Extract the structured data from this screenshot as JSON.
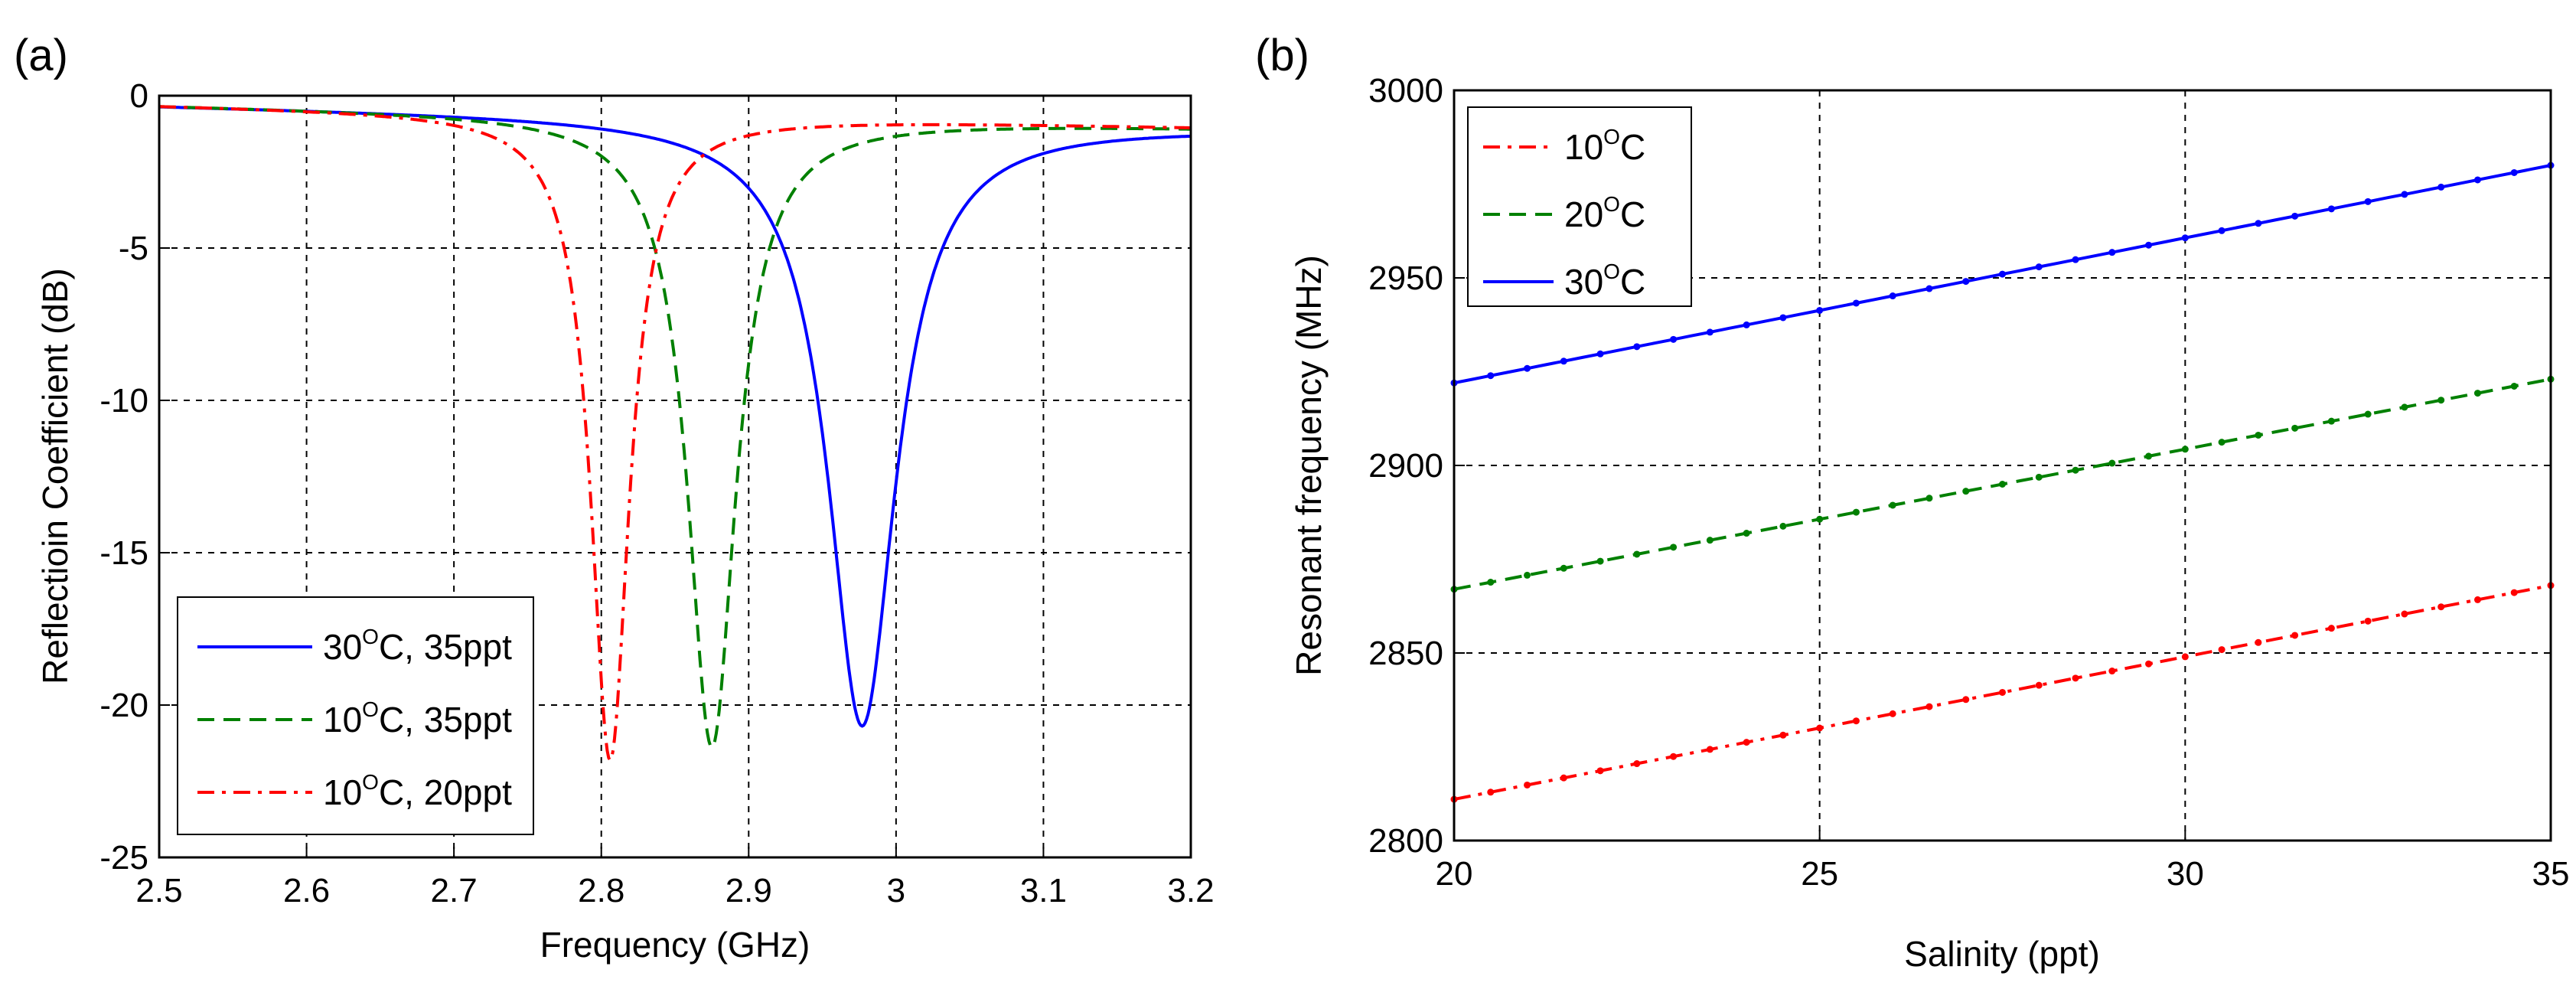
{
  "chart_data": [
    {
      "panel_label": "(a)",
      "type": "line",
      "xlabel": "Frequency (GHz)",
      "ylabel": "Reflectioin Coefficient (dB)",
      "xlim": [
        2.5,
        3.2
      ],
      "ylim": [
        -25,
        0
      ],
      "grid": true,
      "legend_placement": "bottom-left",
      "x_ticks": [
        "2.5",
        "2.6",
        "2.7",
        "2.8",
        "2.9",
        "3",
        "3.1",
        "3.2"
      ],
      "y_ticks": [
        "0",
        "-5",
        "-10",
        "-15",
        "-20",
        "-25"
      ],
      "series": [
        {
          "name": "30°C, 35ppt",
          "legend_base": "30",
          "legend_sup": "O",
          "legend_rest": "C, 35ppt",
          "color": "#0000ff",
          "style": "solid",
          "f0": 2.977,
          "min_db": -20.2,
          "half_width": 0.028,
          "base_db": -0.3
        },
        {
          "name": "10°C, 35ppt",
          "legend_base": "10",
          "legend_sup": "O",
          "legend_rest": "C, 35ppt",
          "color": "#008000",
          "style": "dashed",
          "f0": 2.875,
          "min_db": -21.0,
          "half_width": 0.02,
          "base_db": -0.3
        },
        {
          "name": "10°C, 20ppt",
          "legend_base": "10",
          "legend_sup": "O",
          "legend_rest": "C, 20ppt",
          "color": "#ff0000",
          "style": "dashdot",
          "f0": 2.806,
          "min_db": -21.5,
          "half_width": 0.016,
          "base_db": -0.3
        }
      ]
    },
    {
      "panel_label": "(b)",
      "type": "line",
      "xlabel": "Salinity (ppt)",
      "ylabel": "Resonant frequency (MHz)",
      "xlim": [
        20,
        35
      ],
      "ylim": [
        2800,
        3000
      ],
      "grid": true,
      "legend_placement": "top-left",
      "x_ticks": [
        "20",
        "25",
        "30",
        "35"
      ],
      "y_ticks": [
        "3000",
        "2950",
        "2900",
        "2850",
        "2800"
      ],
      "series": [
        {
          "name": "10°C",
          "legend_base": "10",
          "legend_sup": "O",
          "legend_rest": "C",
          "color": "#ff0000",
          "style": "dashdot",
          "y_start": 2811,
          "y_end": 2868
        },
        {
          "name": "20°C",
          "legend_base": "20",
          "legend_sup": "O",
          "legend_rest": "C",
          "color": "#008000",
          "style": "dashed",
          "y_start": 2867,
          "y_end": 2923
        },
        {
          "name": "30°C",
          "legend_base": "30",
          "legend_sup": "O",
          "legend_rest": "C",
          "color": "#0000ff",
          "style": "solid",
          "y_start": 2922,
          "y_end": 2980
        }
      ]
    }
  ]
}
